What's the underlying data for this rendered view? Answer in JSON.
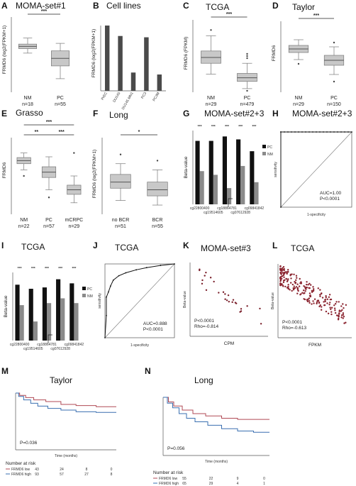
{
  "panels": [
    {
      "letter": "A",
      "title": "MOMA-set#1",
      "ylabel": "FRMD6 (log2(FPKM+1)",
      "sig": [
        "***"
      ],
      "groups": [
        {
          "name": "NM",
          "n": "n=18",
          "q1": 58,
          "med": 61,
          "q3": 64,
          "wl": 52,
          "wh": 72
        },
        {
          "name": "PC",
          "n": "n=55",
          "q1": 35,
          "med": 45,
          "q3": 55,
          "wl": 18,
          "wh": 65
        }
      ]
    },
    {
      "letter": "B",
      "title": "Cell lines",
      "ylabel": "FRMD6 (log2(FPKM+1)",
      "categories": [
        "PrEC",
        "DU145",
        "DU145 MN1",
        "PC3",
        "PC3M"
      ],
      "values": [
        100,
        84,
        28,
        82,
        25
      ]
    },
    {
      "letter": "C",
      "title": "TCGA",
      "ylabel": "FRMD6 (FPKM)",
      "sig": [
        "***"
      ],
      "groups": [
        {
          "name": "NM",
          "n": "n=29",
          "q1": 40,
          "med": 48,
          "q3": 57,
          "wl": 25,
          "wh": 78
        },
        {
          "name": "PC",
          "n": "n=479",
          "q1": 15,
          "med": 20,
          "q3": 26,
          "wl": 5,
          "wh": 40
        }
      ]
    },
    {
      "letter": "D",
      "title": "Taylor",
      "ylabel": "FRMD6",
      "sig": [
        "***"
      ],
      "groups": [
        {
          "name": "NM",
          "n": "n=29",
          "q1": 56,
          "med": 61,
          "q3": 66,
          "wl": 46,
          "wh": 74
        },
        {
          "name": "PC",
          "n": "n=150",
          "q1": 38,
          "med": 45,
          "q3": 52,
          "wl": 25,
          "wh": 64
        }
      ]
    },
    {
      "letter": "E",
      "title": "Grasso",
      "ylabel": "FRMD6",
      "sig": [
        "***",
        "**",
        "***"
      ],
      "groups": [
        {
          "name": "NM",
          "n": "n=22",
          "q1": 66,
          "med": 70,
          "q3": 74,
          "wl": 58,
          "wh": 80
        },
        {
          "name": "PC",
          "n": "n=57",
          "q1": 48,
          "med": 55,
          "q3": 62,
          "wl": 32,
          "wh": 75
        },
        {
          "name": "mCRPC",
          "n": "n=29",
          "q1": 26,
          "med": 32,
          "q3": 38,
          "wl": 15,
          "wh": 50
        }
      ]
    },
    {
      "letter": "F",
      "title": "Long",
      "ylabel": "FRMD6 (log2(FPKM+1)",
      "sig": [
        "*"
      ],
      "groups": [
        {
          "name": "no BCR",
          "n": "n=51",
          "q1": 34,
          "med": 42,
          "q3": 52,
          "wl": 18,
          "wh": 66
        },
        {
          "name": "BCR",
          "n": "n=55",
          "q1": 24,
          "med": 32,
          "q3": 42,
          "wl": 12,
          "wh": 58
        }
      ]
    },
    {
      "letter": "G",
      "title": "MOMA-set#2+3",
      "ylabel": "Beta-value",
      "legend": [
        "PC",
        "NM"
      ],
      "sig": [
        "***",
        "***",
        "***",
        "***",
        "***"
      ],
      "xlabels_top": [
        "cg22800400",
        "cg18864781",
        "cg09841842"
      ],
      "xlabels_bottom": [
        "cg19514605",
        "cg07612928"
      ],
      "pc": [
        0.86,
        0.86,
        0.92,
        0.88,
        0.72
      ],
      "nm": [
        0.45,
        0.4,
        0.22,
        0.52,
        0.3
      ]
    },
    {
      "letter": "H",
      "title": "MOMA-set#2+3",
      "ylabel": "sensitivity",
      "xlabel": "1-specificity",
      "auc": "AUC=1.00",
      "p": "P<0.0001"
    },
    {
      "letter": "I",
      "title": "TCGA",
      "ylabel": "Beta-value",
      "legend": [
        "PC",
        "NM"
      ],
      "sig": [
        "***",
        "***",
        "***",
        "***",
        "***"
      ],
      "xlabels_top": [
        "cg22800400",
        "cg18864781",
        "cg09841842"
      ],
      "xlabels_bottom": [
        "cg19514605",
        "cg07612928"
      ],
      "pc": [
        0.82,
        0.76,
        0.78,
        0.9,
        0.84
      ],
      "nm": [
        0.52,
        0.28,
        0.55,
        0.62,
        0.55
      ]
    },
    {
      "letter": "J",
      "title": "TCGA",
      "ylabel": "sensitivity",
      "xlabel": "1-specificity",
      "auc": "AUC=0.888",
      "p": "P<0.0001"
    },
    {
      "letter": "K",
      "title": "MOMA-set#3",
      "ylabel": "Beta-value",
      "xlabel": "CPM",
      "p": "P<0.0001",
      "rho": "Rho=-0.814"
    },
    {
      "letter": "L",
      "title": "TCGA",
      "ylabel": "Beta-value",
      "xlabel": "FPKM",
      "p": "P<0.0001",
      "rho": "Rho=-0.613"
    },
    {
      "letter": "M",
      "title": "Taylor",
      "xlabel": "Time (months)",
      "p": "P=0.036",
      "risk_title": "Number at risk",
      "risk": [
        {
          "label": "FRMD6 low",
          "values": [
            "43",
            "24",
            "8",
            "0"
          ]
        },
        {
          "label": "FRMD6 high",
          "values": [
            "93",
            "57",
            "27",
            "8"
          ]
        }
      ]
    },
    {
      "letter": "N",
      "title": "Long",
      "xlabel": "Time (months)",
      "p": "P=0.056",
      "risk_title": "Number at risk",
      "risk": [
        {
          "label": "FRMD6 low",
          "values": [
            "55",
            "22",
            "9",
            "0"
          ]
        },
        {
          "label": "FRMD6 high",
          "values": [
            "65",
            "29",
            "4",
            "1"
          ]
        }
      ]
    }
  ]
}
